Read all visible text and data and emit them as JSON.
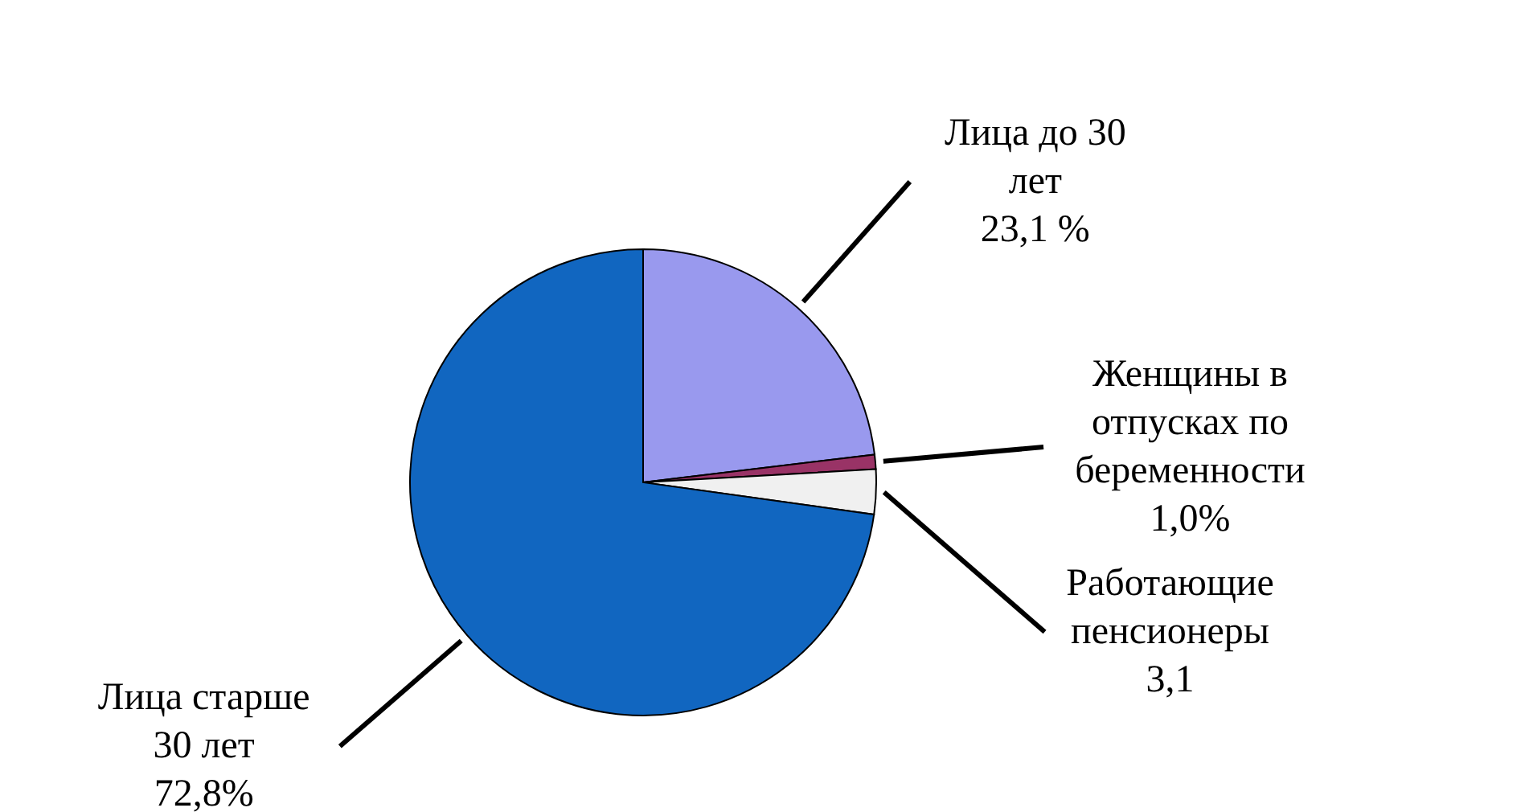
{
  "chart_data": {
    "type": "pie",
    "categories": [
      "Лица до 30 лет",
      "Женщины в отпусках по беременности",
      "Работающие пенсионеры",
      "Лица старше 30 лет"
    ],
    "values": [
      23.1,
      1.0,
      3.1,
      72.8
    ],
    "colors": [
      "#9999ee",
      "#993366",
      "#f0f0f0",
      "#1166c0"
    ],
    "value_labels": [
      "23,1 %",
      "1,0%",
      "3,1",
      "72,8%"
    ]
  }
}
